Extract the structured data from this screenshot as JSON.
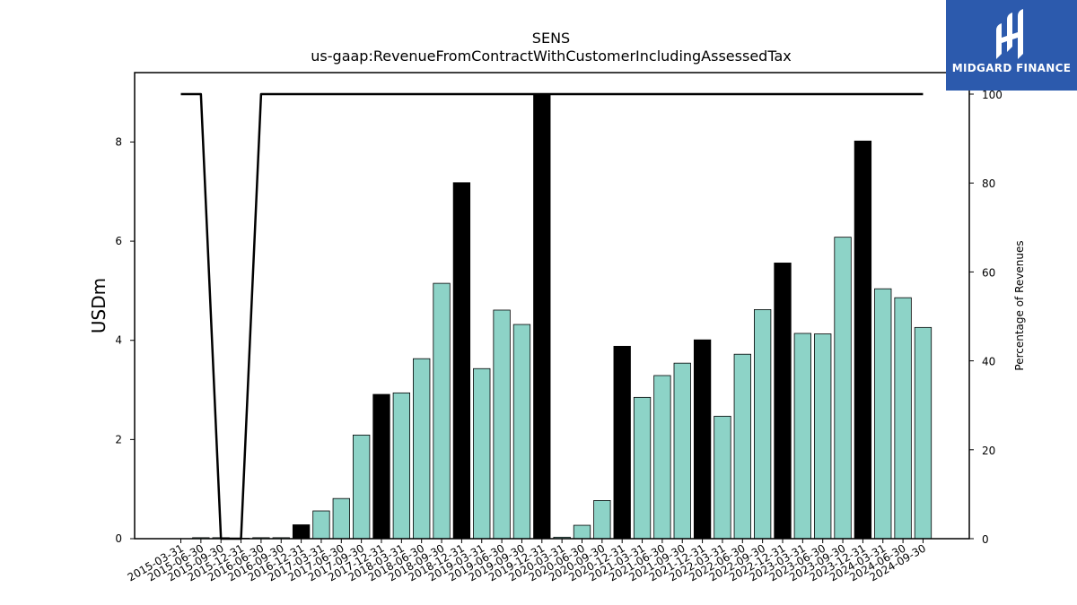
{
  "chart_data": {
    "type": "bar",
    "title": "SENS",
    "subtitle": "us-gaap:RevenueFromContractWithCustomerIncludingAssessedTax",
    "ylabel": "USDm",
    "y2label": "Percentage of Revenues",
    "ylim": [
      0,
      9.4
    ],
    "y2lim": [
      0,
      100
    ],
    "yticks": [
      0,
      2,
      4,
      6,
      8
    ],
    "y2ticks": [
      0,
      20,
      40,
      60,
      80,
      100
    ],
    "categories": [
      "2015-03-31",
      "2015-06-30",
      "2015-09-30",
      "2015-12-31",
      "2016-06-30",
      "2016-09-30",
      "2016-12-31",
      "2017-03-31",
      "2017-06-30",
      "2017-09-30",
      "2017-12-31",
      "2018-03-31",
      "2018-06-30",
      "2018-09-30",
      "2018-12-31",
      "2019-03-31",
      "2019-06-30",
      "2019-09-30",
      "2019-12-31",
      "2020-03-31",
      "2020-06-30",
      "2020-09-30",
      "2020-12-31",
      "2021-03-31",
      "2021-06-30",
      "2021-09-30",
      "2021-12-31",
      "2022-03-31",
      "2022-06-30",
      "2022-09-30",
      "2022-12-31",
      "2023-03-31",
      "2023-06-30",
      "2023-09-30",
      "2023-12-31",
      "2024-03-31",
      "2024-06-30",
      "2024-09-30"
    ],
    "values": [
      0.0,
      0.02,
      0.02,
      0.01,
      0.02,
      0.02,
      0.28,
      0.56,
      0.81,
      2.09,
      2.91,
      2.94,
      3.63,
      5.15,
      7.18,
      3.43,
      4.61,
      4.32,
      8.95,
      0.03,
      0.27,
      0.77,
      3.88,
      2.85,
      3.29,
      3.54,
      4.01,
      2.47,
      3.72,
      4.62,
      5.56,
      4.14,
      4.13,
      6.08,
      8.02,
      5.04,
      4.86,
      4.26
    ],
    "highlight": [
      false,
      false,
      false,
      false,
      false,
      false,
      true,
      false,
      false,
      false,
      true,
      false,
      false,
      false,
      true,
      false,
      false,
      false,
      true,
      false,
      false,
      false,
      true,
      false,
      false,
      false,
      true,
      false,
      false,
      false,
      true,
      false,
      false,
      false,
      true,
      false,
      false,
      false
    ],
    "line_series": {
      "values": [
        100,
        100,
        0,
        0,
        100,
        100,
        100,
        100,
        100,
        100,
        100,
        100,
        100,
        100,
        100,
        100,
        100,
        100,
        100,
        100,
        100,
        100,
        100,
        100,
        100,
        100,
        100,
        100,
        100,
        100,
        100,
        100,
        100,
        100,
        100,
        100,
        100,
        100
      ]
    },
    "colors": {
      "bar": "#8dd3c7",
      "bar_highlight": "#000000",
      "line": "#000000"
    }
  },
  "logo": {
    "text": "MIDGARD FINANCE",
    "icon": "midgard-logo-icon",
    "color": "#2c5aad"
  }
}
